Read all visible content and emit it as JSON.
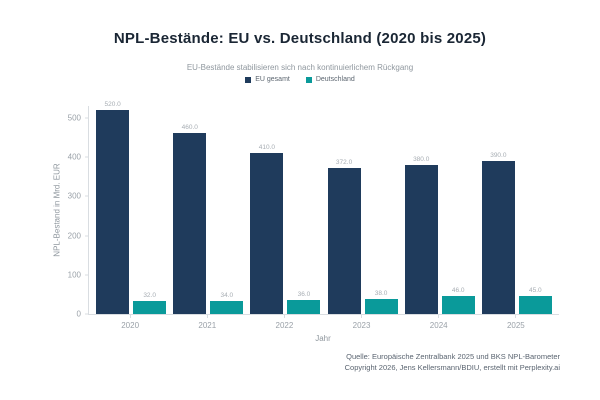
{
  "header": {
    "title": "NPL-Bestände: EU vs. Deutschland (2020 bis 2025)",
    "subtitle": "EU-Bestände stabilisieren sich nach kontinuierlichem Rückgang"
  },
  "colors": {
    "eu_series": "#1f3b5c",
    "de_series": "#0a9a9a",
    "axis_line": "#d9dde1",
    "tick_text": "#9aa1a8"
  },
  "chart_data": {
    "type": "bar",
    "title": "NPL-Bestände: EU vs. Deutschland (2020 bis 2025)",
    "subtitle": "EU-Bestände stabilisieren sich nach kontinuierlichem Rückgang",
    "categories": [
      "2020",
      "2021",
      "2022",
      "2023",
      "2024",
      "2025"
    ],
    "series": [
      {
        "name": "EU gesamt",
        "color": "#1f3b5c",
        "values": [
          520.0,
          460.0,
          410.0,
          372.0,
          380.0,
          390.0
        ],
        "labels": [
          "520.0",
          "460.0",
          "410.0",
          "372.0",
          "380.0",
          "390.0"
        ]
      },
      {
        "name": "Deutschland",
        "color": "#0a9a9a",
        "values": [
          32.0,
          34.0,
          36.0,
          38.0,
          46.0,
          45.0
        ],
        "labels": [
          "32.0",
          "34.0",
          "36.0",
          "38.0",
          "46.0",
          "45.0"
        ]
      }
    ],
    "xlabel": "Jahr",
    "ylabel": "NPL-Bestand in Mrd. EUR",
    "yticks": [
      0,
      100,
      200,
      300,
      400,
      500
    ],
    "ylim": [
      0,
      530
    ],
    "grid": false,
    "legend_position": "top"
  },
  "footer": {
    "line1": "Quelle: Europäische Zentralbank 2025 und BKS NPL-Barometer",
    "line2": "Copyright 2026, Jens Kellersmann/BDIU, erstellt mit Perplexity.ai"
  }
}
